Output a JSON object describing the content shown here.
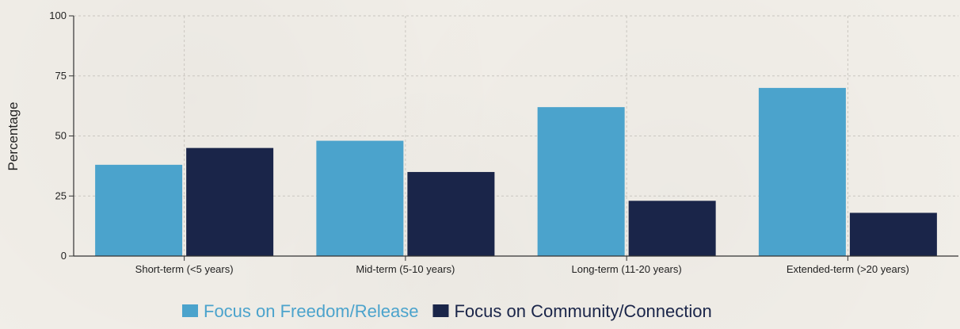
{
  "chart_data": {
    "type": "bar",
    "categories": [
      "Short-term (<5 years)",
      "Mid-term (5-10 years)",
      "Long-term (11-20 years)",
      "Extended-term (>20 years)"
    ],
    "series": [
      {
        "name": "Focus on Freedom/Release",
        "values": [
          38,
          48,
          62,
          70
        ],
        "color": "#4ba3cc"
      },
      {
        "name": "Focus on Community/Connection",
        "values": [
          45,
          35,
          23,
          18
        ],
        "color": "#1a2549"
      }
    ],
    "xlabel": "",
    "ylabel": "Percentage",
    "ylim": [
      0,
      100
    ],
    "yticks": [
      0,
      25,
      50,
      75,
      100
    ],
    "grid": true,
    "legend_position": "bottom-center"
  }
}
